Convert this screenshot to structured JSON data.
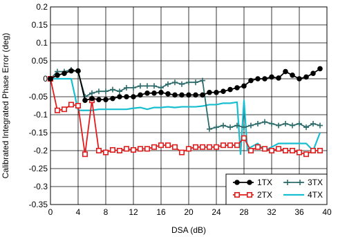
{
  "chart_data": {
    "type": "line",
    "title": "",
    "xlabel": "DSA (dB)",
    "ylabel": "Calibrated Integrated Phase Error (deg)",
    "xlim": [
      0,
      40
    ],
    "ylim": [
      -0.35,
      0.2
    ],
    "xticks": [
      "0",
      "4",
      "8",
      "12",
      "16",
      "20",
      "24",
      "28",
      "32",
      "36",
      "40"
    ],
    "yticks": [
      "0.2",
      "0.15",
      "0.1",
      "0.05",
      "0",
      "-0.05",
      "-0.1",
      "-0.15",
      "-0.2",
      "-0.25",
      "-0.3",
      "-0.35"
    ],
    "grid": true,
    "legend_position": "bottom-right",
    "series": [
      {
        "name": "1TX",
        "color": "#000000",
        "marker": "circle",
        "x": [
          0,
          1,
          2,
          3,
          4,
          5,
          6,
          7,
          8,
          9,
          10,
          11,
          12,
          13,
          14,
          15,
          16,
          17,
          18,
          19,
          20,
          21,
          22,
          23,
          24,
          25,
          26,
          27,
          28,
          29,
          30,
          31,
          32,
          33,
          34,
          35,
          36,
          37,
          38,
          39
        ],
        "y": [
          0.0,
          0.01,
          0.015,
          0.022,
          0.022,
          -0.06,
          -0.055,
          -0.058,
          -0.058,
          -0.055,
          -0.05,
          -0.05,
          -0.05,
          -0.045,
          -0.04,
          -0.04,
          -0.038,
          -0.042,
          -0.045,
          -0.045,
          -0.045,
          -0.045,
          -0.045,
          -0.038,
          -0.038,
          -0.035,
          -0.03,
          -0.025,
          -0.02,
          -0.005,
          0.0,
          0.0,
          0.005,
          0.002,
          0.02,
          0.01,
          0.0,
          0.005,
          0.015,
          0.028
        ]
      },
      {
        "name": "2TX",
        "color": "#e41a1a",
        "marker": "square",
        "x": [
          0,
          1,
          2,
          3,
          4,
          5,
          6,
          7,
          8,
          9,
          10,
          11,
          12,
          13,
          14,
          15,
          16,
          17,
          18,
          19,
          20,
          21,
          22,
          23,
          24,
          25,
          26,
          27,
          28,
          29,
          30,
          31,
          32,
          33,
          34,
          35,
          36,
          37,
          38,
          39
        ],
        "y": [
          0.0,
          -0.088,
          -0.085,
          -0.072,
          -0.075,
          -0.21,
          -0.06,
          -0.2,
          -0.205,
          -0.198,
          -0.2,
          -0.195,
          -0.198,
          -0.195,
          -0.195,
          -0.19,
          -0.185,
          -0.185,
          -0.19,
          -0.205,
          -0.195,
          -0.19,
          -0.19,
          -0.19,
          -0.19,
          -0.185,
          -0.185,
          -0.185,
          -0.165,
          -0.2,
          -0.19,
          -0.195,
          -0.2,
          -0.195,
          -0.2,
          -0.2,
          -0.205,
          -0.21,
          -0.2,
          -0.2
        ]
      },
      {
        "name": "3TX",
        "color": "#2e6b6b",
        "marker": "plus",
        "x": [
          0,
          1,
          2,
          3,
          4,
          5,
          6,
          7,
          8,
          9,
          10,
          11,
          12,
          13,
          14,
          15,
          16,
          17,
          18,
          19,
          20,
          21,
          22,
          23,
          24,
          25,
          26,
          27,
          28,
          29,
          30,
          31,
          32,
          33,
          34,
          35,
          36,
          37,
          38,
          39
        ],
        "y": [
          0.0,
          0.02,
          0.02,
          0.025,
          0.02,
          -0.05,
          -0.04,
          -0.035,
          -0.035,
          -0.03,
          -0.035,
          -0.025,
          -0.025,
          -0.02,
          -0.02,
          -0.02,
          -0.025,
          -0.015,
          -0.01,
          -0.015,
          -0.01,
          -0.01,
          -0.005,
          -0.14,
          -0.135,
          -0.13,
          -0.135,
          -0.13,
          -0.135,
          -0.13,
          -0.125,
          -0.12,
          -0.125,
          -0.13,
          -0.125,
          -0.13,
          -0.125,
          -0.135,
          -0.125,
          -0.13
        ]
      },
      {
        "name": "4TX",
        "color": "#17becf",
        "marker": "none",
        "x": [
          0,
          1,
          2,
          3,
          4,
          5,
          6,
          7,
          8,
          9,
          10,
          11,
          12,
          13,
          14,
          15,
          16,
          17,
          18,
          19,
          20,
          21,
          22,
          23,
          24,
          25,
          26,
          27,
          27.5,
          28,
          28.5,
          29,
          30,
          31,
          32,
          33,
          34,
          35,
          36,
          37,
          38,
          39
        ],
        "y": [
          0.0,
          0.0,
          0.0,
          0.0,
          -0.088,
          -0.088,
          -0.088,
          -0.085,
          -0.085,
          -0.085,
          -0.085,
          -0.085,
          -0.082,
          -0.08,
          -0.085,
          -0.08,
          -0.08,
          -0.078,
          -0.08,
          -0.078,
          -0.078,
          -0.078,
          -0.076,
          -0.072,
          -0.072,
          -0.068,
          -0.068,
          -0.065,
          -0.21,
          -0.06,
          -0.2,
          -0.19,
          -0.18,
          -0.2,
          -0.19,
          -0.18,
          -0.18,
          -0.18,
          -0.18,
          -0.18,
          -0.2,
          -0.15
        ]
      }
    ]
  }
}
